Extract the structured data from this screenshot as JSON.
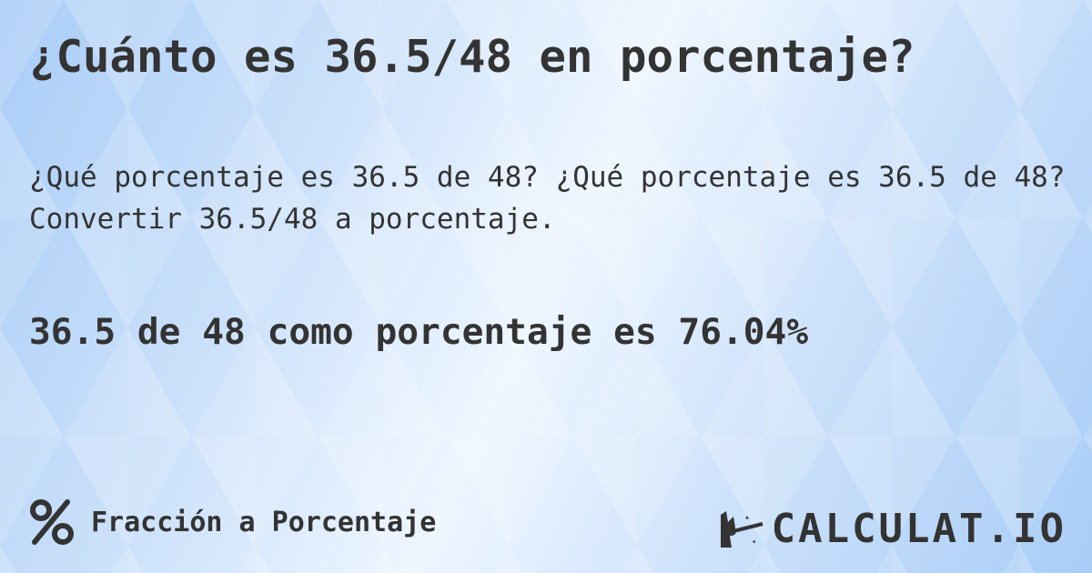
{
  "title": "¿Cuánto es 36.5/48 en porcentaje?",
  "description": "¿Qué porcentaje es 36.5 de 48? ¿Qué porcentaje es 36.5 de 48? Convertir 36.5/48 a porcentaje.",
  "result": "36.5 de 48 como porcentaje es 76.04%",
  "footer": {
    "icon": "percent-icon",
    "label": "Fracción a Porcentaje"
  },
  "logo": {
    "icon": "magic-hand-icon",
    "text": "CALCULAT.IO"
  },
  "colors": {
    "text": "#333333",
    "background": "#cfe3fb"
  }
}
